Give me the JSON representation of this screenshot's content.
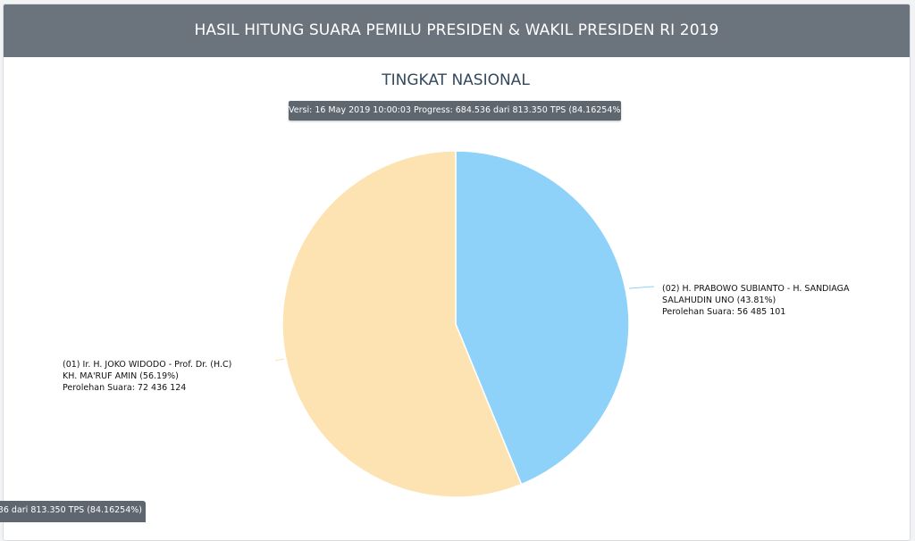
{
  "header": {
    "title": "HASIL HITUNG SUARA PEMILU PRESIDEN & WAKIL PRESIDEN RI 2019"
  },
  "progress": {
    "text": "Versi: 16 May 2019 10:00:03 Progress: 684.536 dari 813.350 TPS (84.16254%)",
    "tooltip_text": "Versi: 16 May 2019 10:00:03 Progress: 684.536 dari 813.350 TPS (84.16254%)"
  },
  "colors": {
    "candidate_01": "#fde3b2",
    "candidate_02": "#8ed2fa",
    "header_bg": "#6b737c"
  },
  "chart_data": {
    "type": "pie",
    "title": "TINGKAT NASIONAL",
    "slices": [
      {
        "label_lines": [
          "(01) Ir. H. JOKO WIDODO - Prof. Dr. (H.C)",
          "KH. MA'RUF AMIN (56.19%)",
          "Perolehan Suara: 72 436 124"
        ],
        "votes": 72436124,
        "percent": 56.19,
        "color": "#fde3b2"
      },
      {
        "label_lines": [
          "(02) H. PRABOWO SUBIANTO - H. SANDIAGA",
          "SALAHUDIN UNO (43.81%)",
          "Perolehan Suara: 56 485 101"
        ],
        "votes": 56485101,
        "percent": 43.81,
        "color": "#8ed2fa"
      }
    ]
  }
}
